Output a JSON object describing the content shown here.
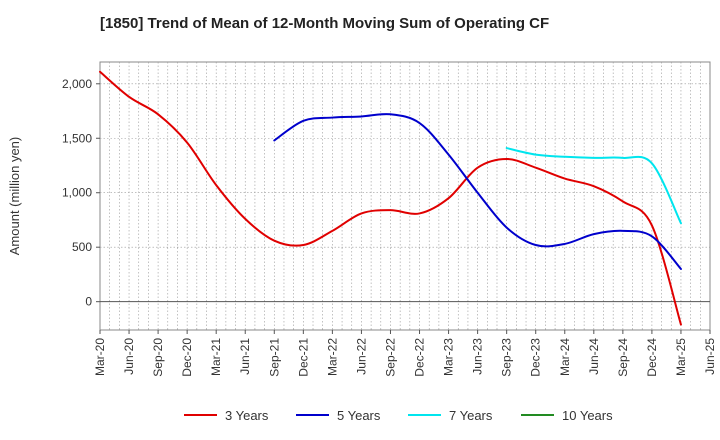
{
  "chart_data": {
    "type": "line",
    "title": "[1850]  Trend of Mean of 12-Month Moving Sum of Operating CF",
    "xlabel": "",
    "ylabel": "Amount (million yen)",
    "ylim": [
      -260,
      2200
    ],
    "yticks": [
      0,
      500,
      1000,
      1500,
      2000
    ],
    "ytick_labels": [
      "0",
      "500",
      "1,000",
      "1,500",
      "2,000"
    ],
    "x_tick_labels": [
      "Mar-20",
      "Jun-20",
      "Sep-20",
      "Dec-20",
      "Mar-21",
      "Jun-21",
      "Sep-21",
      "Dec-21",
      "Mar-22",
      "Jun-22",
      "Sep-22",
      "Dec-22",
      "Mar-23",
      "Jun-23",
      "Sep-23",
      "Dec-23",
      "Mar-24",
      "Jun-24",
      "Sep-24",
      "Dec-24",
      "Mar-25",
      "Jun-25"
    ],
    "x_unit": "months since Mar-20",
    "x_range": [
      0,
      63
    ],
    "grid": true,
    "legend_position": "bottom",
    "series": [
      {
        "name": "3 Years",
        "color": "#e00000",
        "x": [
          0,
          3,
          6,
          9,
          12,
          15,
          18,
          21,
          24,
          27,
          30,
          33,
          36,
          39,
          42,
          45,
          48,
          51,
          54,
          57,
          60
        ],
        "values": [
          2110,
          1880,
          1720,
          1460,
          1070,
          760,
          560,
          520,
          650,
          810,
          840,
          810,
          950,
          1230,
          1310,
          1230,
          1130,
          1060,
          920,
          700,
          -210
        ]
      },
      {
        "name": "5 Years",
        "color": "#0000cc",
        "x": [
          18,
          21,
          24,
          27,
          30,
          33,
          36,
          39,
          42,
          45,
          48,
          51,
          54,
          57,
          60
        ],
        "values": [
          1480,
          1660,
          1690,
          1700,
          1720,
          1640,
          1350,
          1000,
          680,
          520,
          530,
          620,
          650,
          600,
          300
        ]
      },
      {
        "name": "7 Years",
        "color": "#00e5ee",
        "x": [
          42,
          45,
          48,
          51,
          54,
          57,
          60
        ],
        "values": [
          1410,
          1350,
          1330,
          1320,
          1320,
          1270,
          720
        ]
      },
      {
        "name": "10 Years",
        "color": "#228b22",
        "x": [],
        "values": []
      }
    ]
  }
}
